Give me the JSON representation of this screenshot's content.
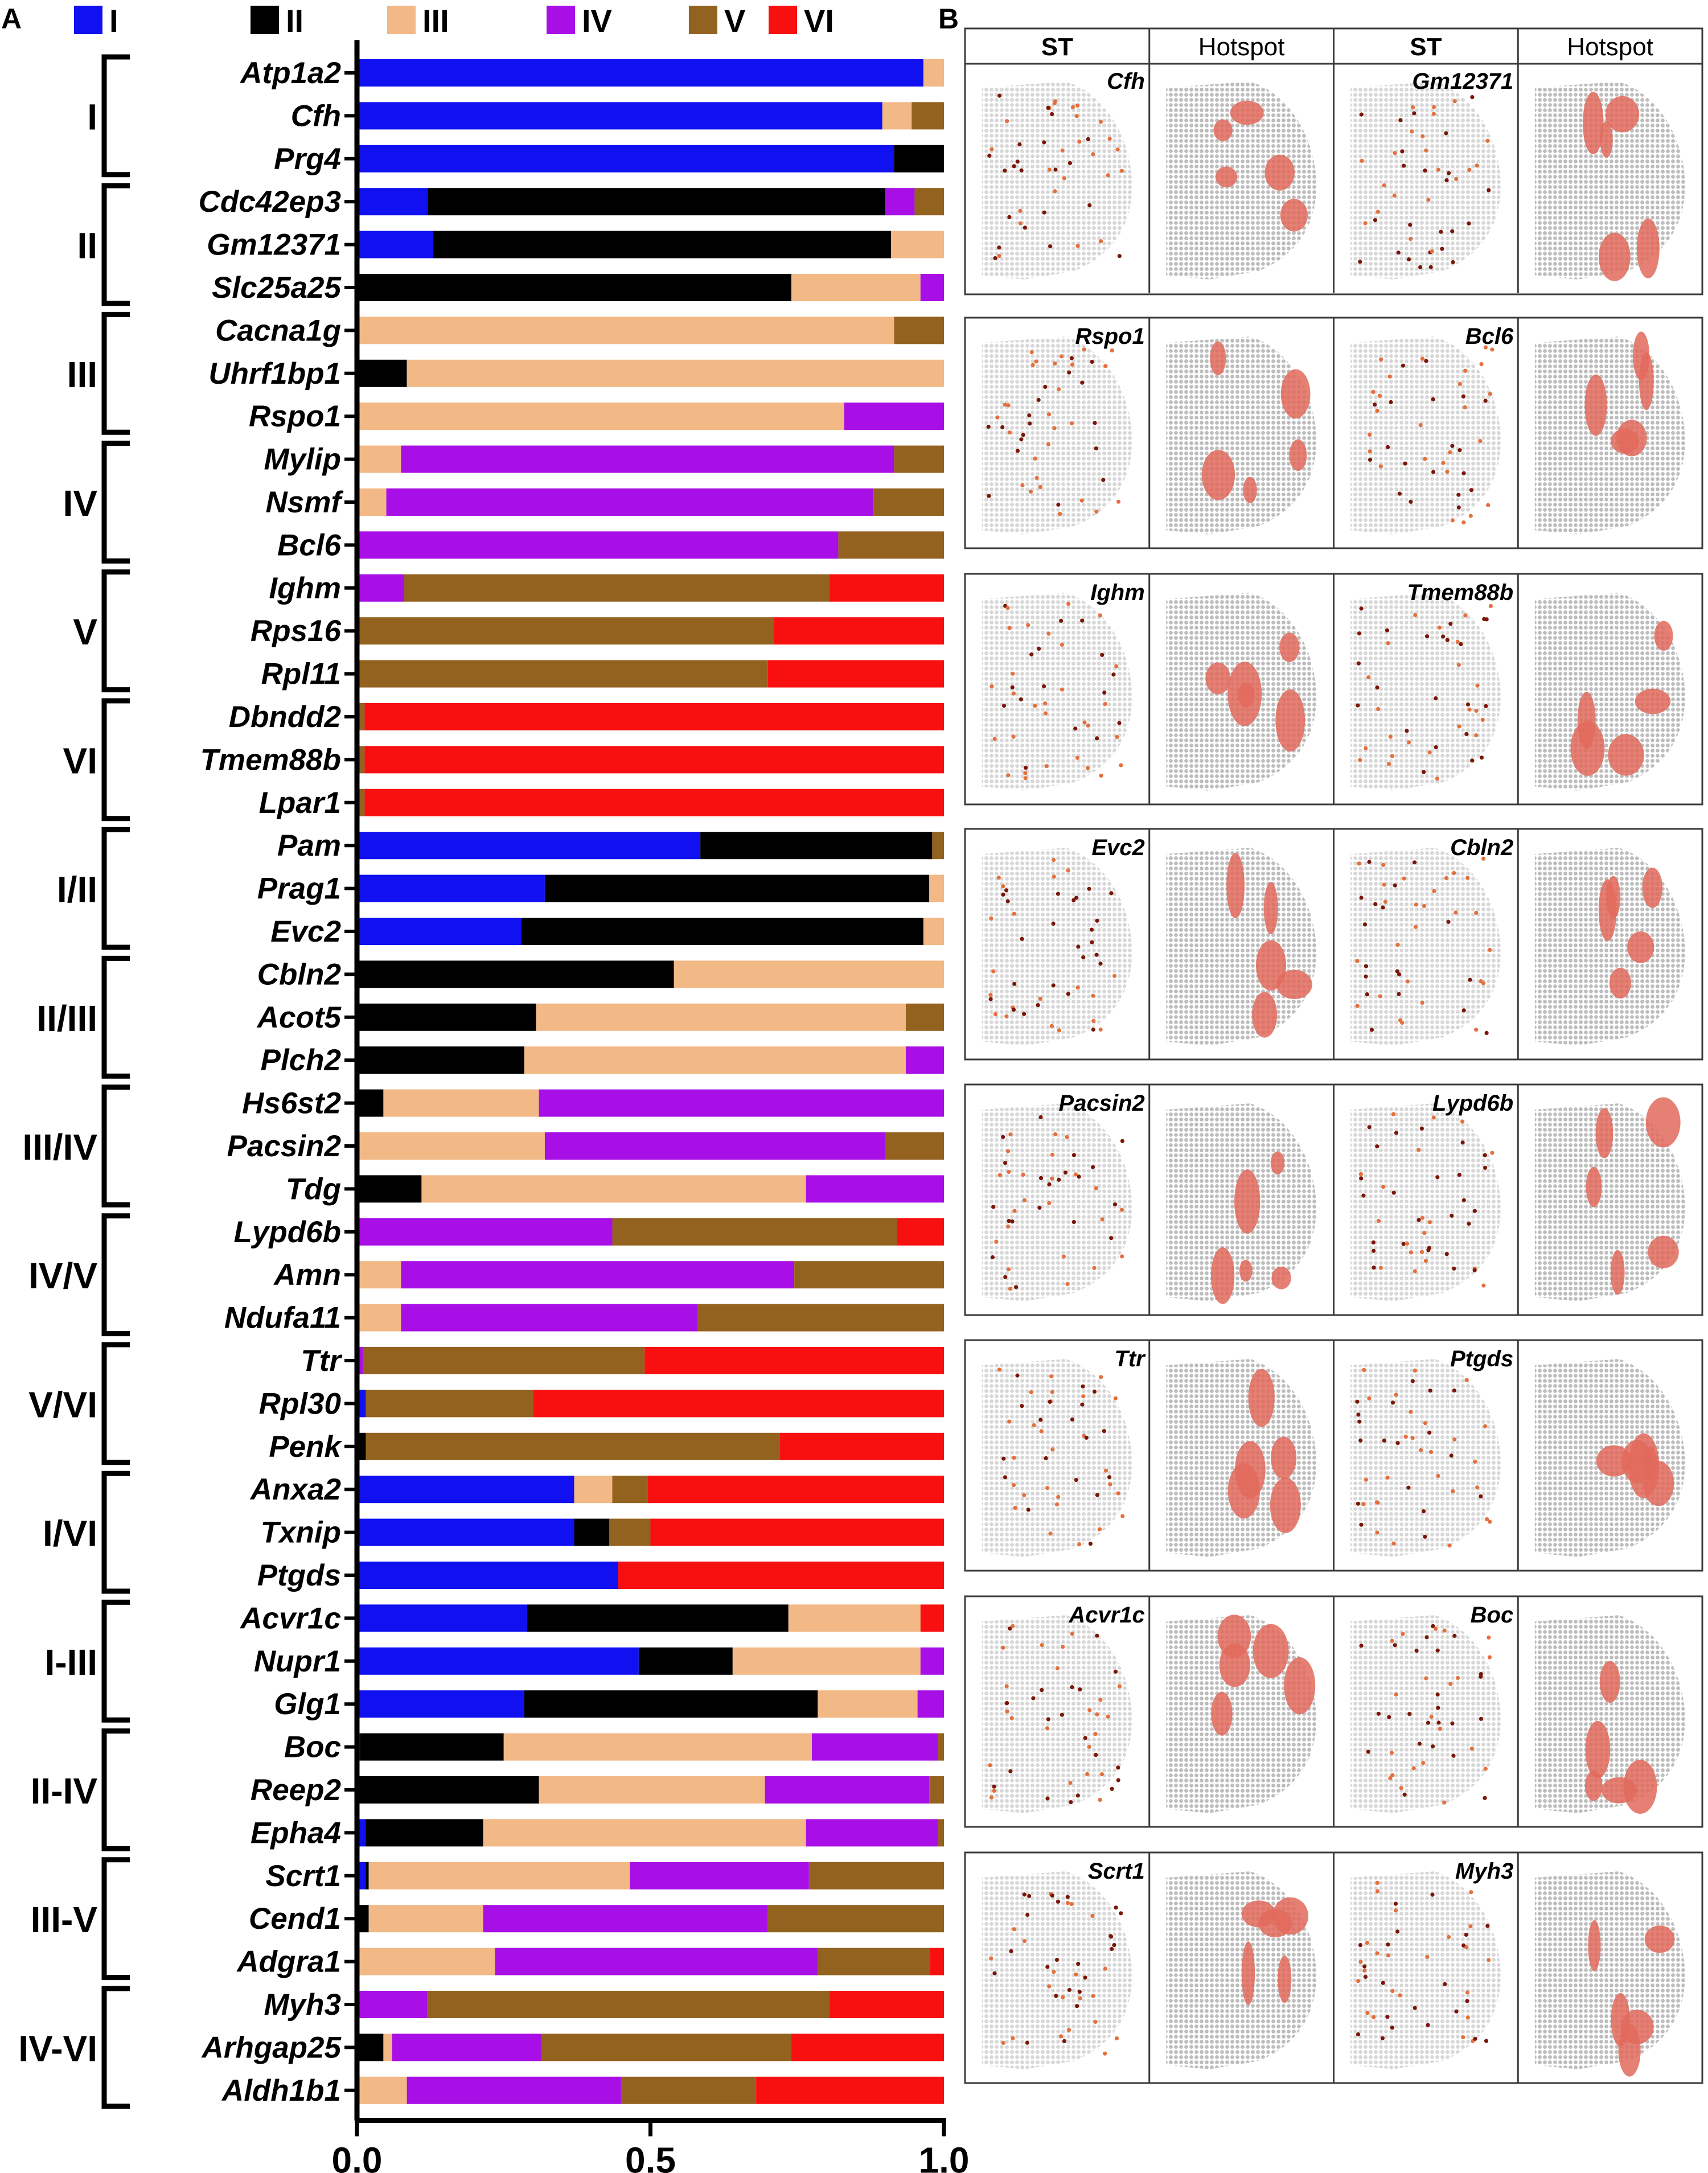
{
  "panels": {
    "a_label": "A",
    "b_label": "B"
  },
  "legend": {
    "items": [
      {
        "label": "I",
        "color": "#1010f0"
      },
      {
        "label": "II",
        "color": "#000000"
      },
      {
        "label": "III",
        "color": "#f2b885"
      },
      {
        "label": "IV",
        "color": "#a80ee6"
      },
      {
        "label": "V",
        "color": "#94621f"
      },
      {
        "label": "VI",
        "color": "#f81010"
      }
    ]
  },
  "chart_data": {
    "type": "bar",
    "orientation": "horizontal",
    "stacked": true,
    "title": "",
    "xlabel": "",
    "ylabel": "",
    "xlim": [
      0.0,
      1.0
    ],
    "xticks": [
      "0.0",
      "0.5",
      "1.0"
    ],
    "grid": false,
    "legend_position": "top",
    "series_names": [
      "I",
      "II",
      "III",
      "IV",
      "V",
      "VI"
    ],
    "series_colors": [
      "#1010f0",
      "#000000",
      "#f2b885",
      "#a80ee6",
      "#94621f",
      "#f81010"
    ],
    "groups": [
      {
        "label": "I",
        "genes": [
          "Atp1a2",
          "Cfh",
          "Prg4"
        ]
      },
      {
        "label": "II",
        "genes": [
          "Cdc42ep3",
          "Gm12371",
          "Slc25a25"
        ]
      },
      {
        "label": "III",
        "genes": [
          "Cacna1g",
          "Uhrf1bp1",
          "Rspo1"
        ]
      },
      {
        "label": "IV",
        "genes": [
          "Mylip",
          "Nsmf",
          "Bcl6"
        ]
      },
      {
        "label": "V",
        "genes": [
          "Ighm",
          "Rps16",
          "Rpl11"
        ]
      },
      {
        "label": "VI",
        "genes": [
          "Dbndd2",
          "Tmem88b",
          "Lpar1"
        ]
      },
      {
        "label": "I/II",
        "genes": [
          "Pam",
          "Prag1",
          "Evc2"
        ]
      },
      {
        "label": "II/III",
        "genes": [
          "Cbln2",
          "Acot5",
          "Plch2"
        ]
      },
      {
        "label": "III/IV",
        "genes": [
          "Hs6st2",
          "Pacsin2",
          "Tdg"
        ]
      },
      {
        "label": "IV/V",
        "genes": [
          "Lypd6b",
          "Amn",
          "Ndufa11"
        ]
      },
      {
        "label": "V/VI",
        "genes": [
          "Ttr",
          "Rpl30",
          "Penk"
        ]
      },
      {
        "label": "I/VI",
        "genes": [
          "Anxa2",
          "Txnip",
          "Ptgds"
        ]
      },
      {
        "label": "I-III",
        "genes": [
          "Acvr1c",
          "Nupr1",
          "Glg1"
        ]
      },
      {
        "label": "II-IV",
        "genes": [
          "Boc",
          "Reep2",
          "Epha4"
        ]
      },
      {
        "label": "III-V",
        "genes": [
          "Scrt1",
          "Cend1",
          "Adgra1"
        ]
      },
      {
        "label": "IV-VI",
        "genes": [
          "Myh3",
          "Arhgap25",
          "Aldh1b1"
        ]
      }
    ],
    "bars": [
      {
        "gene": "Atp1a2",
        "values": [
          0.965,
          0,
          0.035,
          0,
          0,
          0
        ]
      },
      {
        "gene": "Cfh",
        "values": [
          0.895,
          0,
          0.05,
          0,
          0.055,
          0
        ]
      },
      {
        "gene": "Prg4",
        "values": [
          0.915,
          0.085,
          0,
          0,
          0,
          0
        ]
      },
      {
        "gene": "Cdc42ep3",
        "values": [
          0.12,
          0.78,
          0,
          0.05,
          0.05,
          0
        ]
      },
      {
        "gene": "Gm12371",
        "values": [
          0.13,
          0.78,
          0.09,
          0,
          0,
          0
        ]
      },
      {
        "gene": "Slc25a25",
        "values": [
          0,
          0.74,
          0.22,
          0.04,
          0,
          0
        ]
      },
      {
        "gene": "Cacna1g",
        "values": [
          0,
          0,
          0.915,
          0,
          0.085,
          0
        ]
      },
      {
        "gene": "Uhrf1bp1",
        "values": [
          0,
          0.085,
          0.915,
          0,
          0,
          0
        ]
      },
      {
        "gene": "Rspo1",
        "values": [
          0,
          0,
          0.83,
          0.17,
          0,
          0
        ]
      },
      {
        "gene": "Mylip",
        "values": [
          0,
          0,
          0.075,
          0.84,
          0.085,
          0
        ]
      },
      {
        "gene": "Nsmf",
        "values": [
          0,
          0,
          0.05,
          0.83,
          0.12,
          0
        ]
      },
      {
        "gene": "Bcl6",
        "values": [
          0,
          0,
          0,
          0.82,
          0.18,
          0
        ]
      },
      {
        "gene": "Ighm",
        "values": [
          0,
          0,
          0,
          0.08,
          0.725,
          0.195
        ]
      },
      {
        "gene": "Rps16",
        "values": [
          0,
          0,
          0,
          0,
          0.71,
          0.29
        ]
      },
      {
        "gene": "Rpl11",
        "values": [
          0,
          0,
          0,
          0,
          0.7,
          0.3
        ]
      },
      {
        "gene": "Dbndd2",
        "values": [
          0,
          0,
          0,
          0,
          0.013,
          0.987
        ]
      },
      {
        "gene": "Tmem88b",
        "values": [
          0,
          0,
          0,
          0,
          0.013,
          0.987
        ]
      },
      {
        "gene": "Lpar1",
        "values": [
          0,
          0,
          0,
          0,
          0.013,
          0.987
        ]
      },
      {
        "gene": "Pam",
        "values": [
          0.585,
          0.395,
          0,
          0,
          0.02,
          0
        ]
      },
      {
        "gene": "Prag1",
        "values": [
          0.32,
          0.655,
          0.025,
          0,
          0,
          0
        ]
      },
      {
        "gene": "Evc2",
        "values": [
          0.28,
          0.685,
          0.035,
          0,
          0,
          0
        ]
      },
      {
        "gene": "Cbln2",
        "values": [
          0,
          0.54,
          0.46,
          0,
          0,
          0
        ]
      },
      {
        "gene": "Acot5",
        "values": [
          0,
          0.305,
          0.63,
          0,
          0.065,
          0
        ]
      },
      {
        "gene": "Plch2",
        "values": [
          0,
          0.285,
          0.65,
          0.065,
          0,
          0
        ]
      },
      {
        "gene": "Hs6st2",
        "values": [
          0,
          0.045,
          0.265,
          0.69,
          0,
          0
        ]
      },
      {
        "gene": "Pacsin2",
        "values": [
          0,
          0,
          0.32,
          0.58,
          0.1,
          0
        ]
      },
      {
        "gene": "Tdg",
        "values": [
          0,
          0.11,
          0.655,
          0.235,
          0,
          0
        ]
      },
      {
        "gene": "Lypd6b",
        "values": [
          0,
          0,
          0,
          0.435,
          0.485,
          0.08
        ]
      },
      {
        "gene": "Amn",
        "values": [
          0,
          0,
          0.075,
          0.67,
          0.255,
          0
        ]
      },
      {
        "gene": "Ndufa11",
        "values": [
          0,
          0,
          0.075,
          0.505,
          0.42,
          0
        ]
      },
      {
        "gene": "Ttr",
        "values": [
          0,
          0,
          0,
          0.01,
          0.48,
          0.51
        ]
      },
      {
        "gene": "Rpl30",
        "values": [
          0.015,
          0,
          0,
          0,
          0.285,
          0.7
        ]
      },
      {
        "gene": "Penk",
        "values": [
          0,
          0.015,
          0,
          0,
          0.705,
          0.28
        ]
      },
      {
        "gene": "Anxa2",
        "values": [
          0.37,
          0,
          0.065,
          0,
          0.06,
          0.505
        ]
      },
      {
        "gene": "Txnip",
        "values": [
          0.37,
          0.06,
          0,
          0,
          0.07,
          0.5
        ]
      },
      {
        "gene": "Ptgds",
        "values": [
          0.445,
          0,
          0,
          0,
          0,
          0.555
        ]
      },
      {
        "gene": "Acvr1c",
        "values": [
          0.29,
          0.445,
          0.225,
          0,
          0,
          0.04
        ]
      },
      {
        "gene": "Nupr1",
        "values": [
          0.48,
          0.16,
          0.32,
          0.04,
          0,
          0
        ]
      },
      {
        "gene": "Glg1",
        "values": [
          0.285,
          0.5,
          0.17,
          0.045,
          0,
          0
        ]
      },
      {
        "gene": "Boc",
        "values": [
          0.005,
          0.245,
          0.525,
          0.215,
          0.01,
          0
        ]
      },
      {
        "gene": "Reep2",
        "values": [
          0,
          0.31,
          0.385,
          0.28,
          0.025,
          0
        ]
      },
      {
        "gene": "Epha4",
        "values": [
          0.015,
          0.2,
          0.55,
          0.225,
          0.01,
          0
        ]
      },
      {
        "gene": "Scrt1",
        "values": [
          0.015,
          0.005,
          0.445,
          0.305,
          0.23,
          0
        ]
      },
      {
        "gene": "Cend1",
        "values": [
          0,
          0.02,
          0.195,
          0.485,
          0.3,
          0
        ]
      },
      {
        "gene": "Adgra1",
        "values": [
          0,
          0,
          0.235,
          0.55,
          0.19,
          0.025
        ]
      },
      {
        "gene": "Myh3",
        "values": [
          0,
          0,
          0,
          0.12,
          0.685,
          0.195
        ]
      },
      {
        "gene": "Arhgap25",
        "values": [
          0,
          0.045,
          0.015,
          0.255,
          0.425,
          0.26
        ]
      },
      {
        "gene": "Aldh1b1",
        "values": [
          0,
          0,
          0.085,
          0.365,
          0.23,
          0.32
        ]
      }
    ]
  },
  "panel_b": {
    "column_headers": [
      "ST",
      "Hotspot",
      "ST",
      "Hotspot"
    ],
    "rows": [
      {
        "left": "Cfh",
        "right": "Gm12371"
      },
      {
        "left": "Rspo1",
        "right": "Bcl6"
      },
      {
        "left": "Ighm",
        "right": "Tmem88b"
      },
      {
        "left": "Evc2",
        "right": "Cbln2"
      },
      {
        "left": "Pacsin2",
        "right": "Lypd6b"
      },
      {
        "left": "Ttr",
        "right": "Ptgds"
      },
      {
        "left": "Acvr1c",
        "right": "Boc"
      },
      {
        "left": "Scrt1",
        "right": "Myh3"
      }
    ]
  }
}
